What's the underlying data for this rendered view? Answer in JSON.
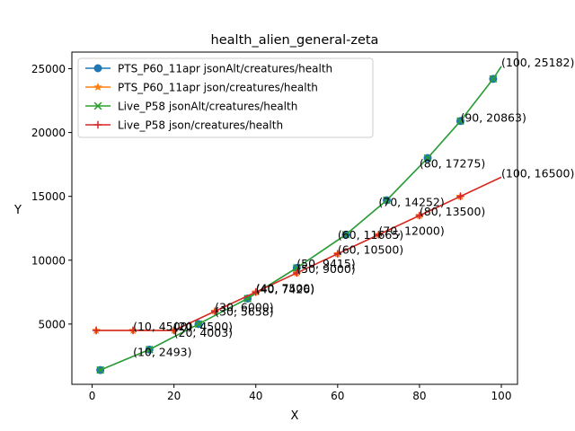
{
  "chart_data": {
    "type": "line",
    "title": "health_alien_general-zeta",
    "xlabel": "X",
    "ylabel": "Y",
    "xlim": [
      -4.95,
      103.95
    ],
    "ylim": [
      280,
      26300
    ],
    "xticks": [
      0,
      20,
      40,
      60,
      80,
      100
    ],
    "yticks": [
      5000,
      10000,
      15000,
      20000,
      25000
    ],
    "grid": false,
    "legend_placement": "top-left",
    "series": [
      {
        "name": "PTS_P60_11apr jsonAlt/creatures/health",
        "color": "#1f77b4",
        "marker": "circle",
        "x": [
          2,
          14,
          26,
          38,
          50,
          62,
          72,
          82,
          90,
          98,
          100
        ],
        "y": [
          1400,
          3000,
          5000,
          7000,
          9400,
          12000,
          14700,
          18000,
          20900,
          24200,
          25182
        ]
      },
      {
        "name": "PTS_P60_11apr json/creatures/health",
        "color": "#ff7f0e",
        "marker": "star",
        "x": [
          1,
          10,
          20,
          30,
          40,
          50,
          60,
          70,
          80,
          90,
          100
        ],
        "y": [
          4500,
          4500,
          4500,
          6000,
          7500,
          9000,
          10500,
          12000,
          13500,
          15000,
          16500
        ]
      },
      {
        "name": "Live_P58 jsonAlt/creatures/health",
        "color": "#2ca02c",
        "marker": "x",
        "x": [
          2,
          14,
          26,
          38,
          50,
          62,
          72,
          82,
          90,
          98,
          100
        ],
        "y": [
          1400,
          3000,
          5000,
          7000,
          9400,
          12000,
          14700,
          18000,
          20900,
          24200,
          25182
        ]
      },
      {
        "name": "Live_P58 json/creatures/health",
        "color": "#d62728",
        "marker": "plus",
        "x": [
          1,
          10,
          20,
          30,
          40,
          50,
          60,
          70,
          80,
          90,
          100
        ],
        "y": [
          4500,
          4500,
          4500,
          6000,
          7500,
          9000,
          10500,
          12000,
          13500,
          15000,
          16500
        ]
      }
    ],
    "annotations": [
      {
        "text": "(10, 2493)",
        "x": 10,
        "y": 2493
      },
      {
        "text": "(20, 4003)",
        "x": 20,
        "y": 4003
      },
      {
        "text": "(30, 5658)",
        "x": 30,
        "y": 5658
      },
      {
        "text": "(40, 7426)",
        "x": 40,
        "y": 7426
      },
      {
        "text": "(50, 9415)",
        "x": 50,
        "y": 9415
      },
      {
        "text": "(60, 11665)",
        "x": 60,
        "y": 11665
      },
      {
        "text": "(70, 14252)",
        "x": 70,
        "y": 14252
      },
      {
        "text": "(80, 17275)",
        "x": 80,
        "y": 17275
      },
      {
        "text": "(90, 20863)",
        "x": 90,
        "y": 20863
      },
      {
        "text": "(100, 25182)",
        "x": 100,
        "y": 25182
      },
      {
        "text": "(10, 4500)",
        "x": 10,
        "y": 4500
      },
      {
        "text": "(20, 4500)",
        "x": 20,
        "y": 4500
      },
      {
        "text": "(30, 6000)",
        "x": 30,
        "y": 6000
      },
      {
        "text": "(40, 7500)",
        "x": 40,
        "y": 7500
      },
      {
        "text": "(50, 9000)",
        "x": 50,
        "y": 9000
      },
      {
        "text": "(60, 10500)",
        "x": 60,
        "y": 10500
      },
      {
        "text": "(70, 12000)",
        "x": 70,
        "y": 12000
      },
      {
        "text": "(80, 13500)",
        "x": 80,
        "y": 13500
      },
      {
        "text": "(100, 16500)",
        "x": 100,
        "y": 16500
      }
    ]
  }
}
